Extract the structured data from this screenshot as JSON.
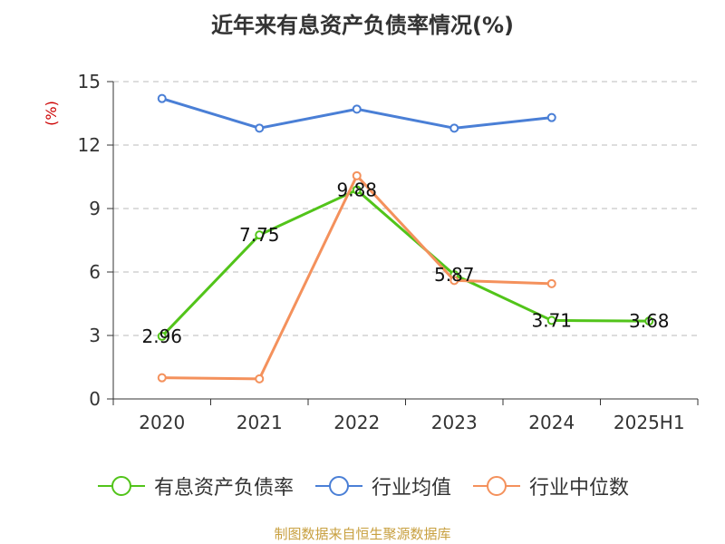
{
  "title": "近年来有息资产负债率情况(%)",
  "source": "制图数据来自恒生聚源数据库",
  "chart_data": {
    "type": "line",
    "title": "近年来有息资产负债率情况(%)",
    "ylabel": "(%)",
    "categories": [
      "2020",
      "2021",
      "2022",
      "2023",
      "2024",
      "2025H1"
    ],
    "ylim": [
      0,
      15
    ],
    "yticks": [
      0,
      3,
      6,
      9,
      12,
      15
    ],
    "grid": true,
    "legend_position": "bottom",
    "series": [
      {
        "name": "有息资产负债率",
        "color": "#52c41a",
        "values": [
          2.96,
          7.75,
          9.88,
          5.87,
          3.71,
          3.68
        ],
        "show_labels": true
      },
      {
        "name": "行业均值",
        "color": "#4a7fd6",
        "values": [
          14.2,
          12.8,
          13.7,
          12.8,
          13.3,
          null
        ],
        "show_labels": false
      },
      {
        "name": "行业中位数",
        "color": "#f4915c",
        "values": [
          1.0,
          0.95,
          10.55,
          5.6,
          5.45,
          null
        ],
        "show_labels": false
      }
    ]
  }
}
